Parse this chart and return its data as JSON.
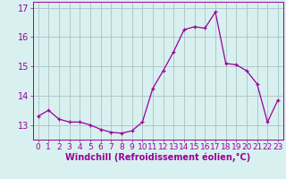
{
  "hours": [
    0,
    1,
    2,
    3,
    4,
    5,
    6,
    7,
    8,
    9,
    10,
    11,
    12,
    13,
    14,
    15,
    16,
    17,
    18,
    19,
    20,
    21,
    22,
    23
  ],
  "values": [
    13.3,
    13.5,
    13.2,
    13.1,
    13.1,
    13.0,
    12.85,
    12.75,
    12.72,
    12.8,
    13.1,
    14.25,
    14.85,
    15.5,
    16.25,
    16.35,
    16.3,
    16.85,
    15.1,
    15.05,
    14.85,
    14.4,
    13.1,
    13.85
  ],
  "line_color": "#990099",
  "marker": "+",
  "bg_color": "#d8f0f0",
  "grid_color": "#b0c8c8",
  "xlabel": "Windchill (Refroidissement éolien,°C)",
  "ylim": [
    12.5,
    17.2
  ],
  "yticks": [
    13,
    14,
    15,
    16,
    17
  ],
  "xticks": [
    0,
    1,
    2,
    3,
    4,
    5,
    6,
    7,
    8,
    9,
    10,
    11,
    12,
    13,
    14,
    15,
    16,
    17,
    18,
    19,
    20,
    21,
    22,
    23
  ],
  "font_size_label": 7.0,
  "font_size_tick": 6.5
}
